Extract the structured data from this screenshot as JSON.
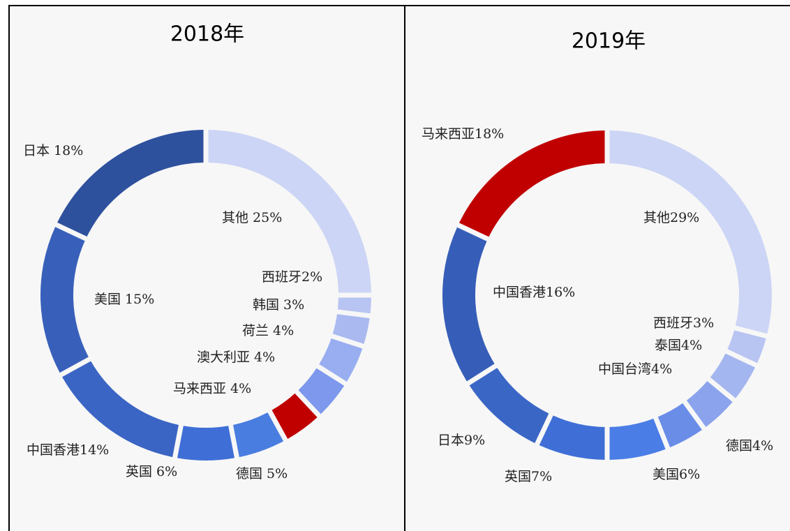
{
  "chart_data": [
    {
      "type": "donut",
      "title": "2018年",
      "categories": [
        "其他",
        "西班牙",
        "韩国",
        "荷兰",
        "澳大利亚",
        "马来西亚",
        "德国",
        "英国",
        "中国香港",
        "美国",
        "日本"
      ],
      "values": [
        25,
        2,
        3,
        4,
        4,
        4,
        5,
        6,
        14,
        15,
        18
      ],
      "value_labels": [
        "其他 25%",
        "西班牙2%",
        "韩国 3%",
        "荷兰 4%",
        "澳大利亚 4%",
        "马来西亚 4%",
        "德国 5%",
        "英国 6%",
        "中国香港14%",
        "美国 15%",
        "日本 18%"
      ],
      "colors": [
        "#ccd5f5",
        "#b8c4f2",
        "#aabaf0",
        "#98aef0",
        "#7d98ec",
        "#c00000",
        "#4a7de0",
        "#3f6fd6",
        "#3b65c4",
        "#3860bb",
        "#2e519e"
      ]
    },
    {
      "type": "donut",
      "title": "2019年",
      "categories": [
        "其他",
        "西班牙",
        "泰国",
        "中国台湾",
        "德国",
        "美国",
        "英国",
        "日本",
        "中国香港",
        "马来西亚"
      ],
      "values": [
        29,
        3,
        4,
        4,
        4,
        6,
        7,
        9,
        16,
        18
      ],
      "value_labels": [
        "其他29%",
        "西班牙3%",
        "泰国4%",
        "中国台湾4%",
        "德国4%",
        "美国6%",
        "英国7%",
        "日本9%",
        "中国香港16%",
        "马来西亚18%"
      ],
      "colors": [
        "#ccd5f5",
        "#b8c4f2",
        "#a4b6ef",
        "#8aa3ec",
        "#6a8de8",
        "#4a7de6",
        "#3f6fd6",
        "#3a66c6",
        "#365eb8",
        "#c00000"
      ]
    }
  ]
}
